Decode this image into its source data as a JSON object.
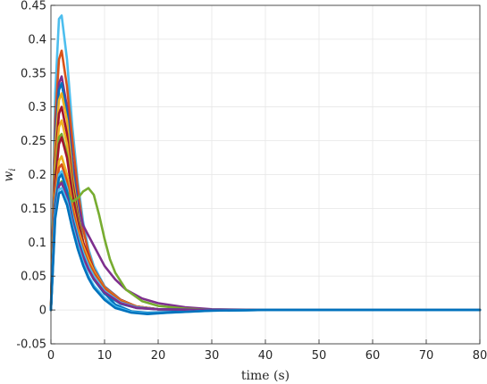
{
  "chart_data": {
    "type": "line",
    "xlabel": "time (s)",
    "ylabel": "w_i",
    "ylabel_main": "w",
    "ylabel_sub": "i",
    "xlim": [
      0,
      80
    ],
    "ylim": [
      -0.05,
      0.45
    ],
    "xticks": [
      0,
      10,
      20,
      30,
      40,
      50,
      60,
      70,
      80
    ],
    "yticks": [
      -0.05,
      0,
      0.05,
      0.1,
      0.15,
      0.2,
      0.25,
      0.3,
      0.35,
      0.4,
      0.45
    ],
    "xtick_labels": [
      "0",
      "10",
      "20",
      "30",
      "40",
      "50",
      "60",
      "70",
      "80"
    ],
    "ytick_labels": [
      "-0.05",
      "0",
      "0.05",
      "0.1",
      "0.15",
      "0.2",
      "0.25",
      "0.3",
      "0.35",
      "0.4",
      "0.45"
    ],
    "grid": true,
    "colors": [
      "#0072BD",
      "#D95319",
      "#EDB120",
      "#7E2F8E",
      "#77AC30",
      "#4DBEEE",
      "#A2142F"
    ],
    "series": [
      {
        "color": "#4DBEEE",
        "values": [
          [
            0,
            0
          ],
          [
            0.8,
            0.32
          ],
          [
            1.5,
            0.43
          ],
          [
            2,
            0.435
          ],
          [
            3,
            0.37
          ],
          [
            4,
            0.27
          ],
          [
            5,
            0.19
          ],
          [
            6,
            0.13
          ],
          [
            7,
            0.09
          ],
          [
            8,
            0.065
          ],
          [
            10,
            0.035
          ],
          [
            13,
            0.015
          ],
          [
            16,
            0.005
          ],
          [
            20,
            0.001
          ],
          [
            30,
            0
          ],
          [
            80,
            0
          ]
        ]
      },
      {
        "color": "#D95319",
        "values": [
          [
            0,
            0
          ],
          [
            0.8,
            0.28
          ],
          [
            1.5,
            0.37
          ],
          [
            2,
            0.383
          ],
          [
            3,
            0.33
          ],
          [
            4,
            0.25
          ],
          [
            5,
            0.18
          ],
          [
            6,
            0.12
          ],
          [
            7,
            0.085
          ],
          [
            8,
            0.06
          ],
          [
            10,
            0.033
          ],
          [
            13,
            0.014
          ],
          [
            16,
            0.005
          ],
          [
            20,
            0.001
          ],
          [
            30,
            0
          ],
          [
            80,
            0
          ]
        ]
      },
      {
        "color": "#7E2F8E",
        "values": [
          [
            0,
            0
          ],
          [
            0.8,
            0.26
          ],
          [
            1.5,
            0.335
          ],
          [
            2,
            0.345
          ],
          [
            3,
            0.3
          ],
          [
            4,
            0.22
          ],
          [
            5,
            0.16
          ],
          [
            6,
            0.125
          ],
          [
            7,
            0.11
          ],
          [
            8,
            0.095
          ],
          [
            10,
            0.065
          ],
          [
            12,
            0.045
          ],
          [
            14,
            0.03
          ],
          [
            17,
            0.017
          ],
          [
            20,
            0.01
          ],
          [
            25,
            0.004
          ],
          [
            30,
            0.001
          ],
          [
            40,
            0
          ],
          [
            80,
            0
          ]
        ]
      },
      {
        "color": "#0072BD",
        "values": [
          [
            0,
            0
          ],
          [
            0.8,
            0.25
          ],
          [
            1.5,
            0.325
          ],
          [
            2,
            0.335
          ],
          [
            3,
            0.29
          ],
          [
            4,
            0.21
          ],
          [
            5,
            0.15
          ],
          [
            6,
            0.1
          ],
          [
            7,
            0.07
          ],
          [
            8,
            0.05
          ],
          [
            10,
            0.025
          ],
          [
            12,
            0.008
          ],
          [
            15,
            -0.002
          ],
          [
            18,
            -0.004
          ],
          [
            22,
            -0.003
          ],
          [
            30,
            -0.001
          ],
          [
            40,
            0
          ],
          [
            80,
            0
          ]
        ]
      },
      {
        "color": "#EDB120",
        "values": [
          [
            0,
            0
          ],
          [
            0.8,
            0.24
          ],
          [
            1.5,
            0.31
          ],
          [
            2,
            0.32
          ],
          [
            3,
            0.28
          ],
          [
            4,
            0.2
          ],
          [
            5,
            0.145
          ],
          [
            6,
            0.1
          ],
          [
            7,
            0.072
          ],
          [
            8,
            0.052
          ],
          [
            10,
            0.028
          ],
          [
            13,
            0.012
          ],
          [
            16,
            0.004
          ],
          [
            20,
            0.001
          ],
          [
            30,
            0
          ],
          [
            80,
            0
          ]
        ]
      },
      {
        "color": "#A2142F",
        "values": [
          [
            0,
            0
          ],
          [
            0.8,
            0.22
          ],
          [
            1.5,
            0.29
          ],
          [
            2,
            0.3
          ],
          [
            3,
            0.26
          ],
          [
            4,
            0.19
          ],
          [
            5,
            0.14
          ],
          [
            6,
            0.1
          ],
          [
            7,
            0.075
          ],
          [
            8,
            0.055
          ],
          [
            10,
            0.03
          ],
          [
            13,
            0.013
          ],
          [
            16,
            0.004
          ],
          [
            20,
            0.001
          ],
          [
            30,
            0
          ],
          [
            80,
            0
          ]
        ]
      },
      {
        "color": "#EDB120",
        "values": [
          [
            0,
            0
          ],
          [
            0.8,
            0.21
          ],
          [
            1.5,
            0.27
          ],
          [
            2,
            0.28
          ],
          [
            3,
            0.245
          ],
          [
            4,
            0.18
          ],
          [
            5,
            0.135
          ],
          [
            6,
            0.098
          ],
          [
            7,
            0.072
          ],
          [
            8,
            0.054
          ],
          [
            10,
            0.03
          ],
          [
            13,
            0.012
          ],
          [
            16,
            0.004
          ],
          [
            20,
            0.001
          ],
          [
            30,
            0
          ],
          [
            80,
            0
          ]
        ]
      },
      {
        "color": "#77AC30",
        "values": [
          [
            0,
            0
          ],
          [
            0.8,
            0.2
          ],
          [
            1.5,
            0.255
          ],
          [
            2,
            0.26
          ],
          [
            3,
            0.23
          ],
          [
            4,
            0.175
          ],
          [
            5,
            0.135
          ],
          [
            6,
            0.1
          ],
          [
            7,
            0.075
          ],
          [
            8,
            0.056
          ],
          [
            10,
            0.031
          ],
          [
            13,
            0.013
          ],
          [
            16,
            0.005
          ],
          [
            20,
            0.001
          ],
          [
            30,
            0
          ],
          [
            80,
            0
          ]
        ]
      },
      {
        "color": "#A2142F",
        "values": [
          [
            0,
            0
          ],
          [
            0.8,
            0.19
          ],
          [
            1.5,
            0.245
          ],
          [
            2,
            0.255
          ],
          [
            3,
            0.225
          ],
          [
            4,
            0.17
          ],
          [
            5,
            0.13
          ],
          [
            6,
            0.1
          ],
          [
            7,
            0.078
          ],
          [
            8,
            0.06
          ],
          [
            10,
            0.034
          ],
          [
            13,
            0.015
          ],
          [
            16,
            0.005
          ],
          [
            20,
            0.001
          ],
          [
            30,
            0
          ],
          [
            80,
            0
          ]
        ]
      },
      {
        "color": "#EDB120",
        "values": [
          [
            0,
            0
          ],
          [
            0.8,
            0.17
          ],
          [
            1.5,
            0.22
          ],
          [
            2,
            0.227
          ],
          [
            3,
            0.2
          ],
          [
            4,
            0.155
          ],
          [
            5,
            0.12
          ],
          [
            6,
            0.095
          ],
          [
            7,
            0.075
          ],
          [
            8,
            0.058
          ],
          [
            10,
            0.033
          ],
          [
            13,
            0.014
          ],
          [
            16,
            0.005
          ],
          [
            20,
            0.001
          ],
          [
            30,
            0
          ],
          [
            80,
            0
          ]
        ]
      },
      {
        "color": "#D95319",
        "values": [
          [
            0,
            0
          ],
          [
            0.8,
            0.165
          ],
          [
            1.5,
            0.21
          ],
          [
            2,
            0.215
          ],
          [
            3,
            0.19
          ],
          [
            4,
            0.15
          ],
          [
            5,
            0.115
          ],
          [
            6,
            0.09
          ],
          [
            7,
            0.07
          ],
          [
            8,
            0.055
          ],
          [
            10,
            0.032
          ],
          [
            13,
            0.013
          ],
          [
            16,
            0.005
          ],
          [
            20,
            0.001
          ],
          [
            30,
            0
          ],
          [
            80,
            0
          ]
        ]
      },
      {
        "color": "#4DBEEE",
        "values": [
          [
            0,
            0
          ],
          [
            0.8,
            0.16
          ],
          [
            1.5,
            0.2
          ],
          [
            2,
            0.205
          ],
          [
            3,
            0.18
          ],
          [
            4,
            0.14
          ],
          [
            5,
            0.11
          ],
          [
            6,
            0.085
          ],
          [
            7,
            0.065
          ],
          [
            8,
            0.05
          ],
          [
            10,
            0.028
          ],
          [
            13,
            0.011
          ],
          [
            16,
            0.004
          ],
          [
            20,
            0.001
          ],
          [
            30,
            0
          ],
          [
            80,
            0
          ]
        ]
      },
      {
        "color": "#77AC30",
        "values": [
          [
            0,
            0
          ],
          [
            0.8,
            0.15
          ],
          [
            1.5,
            0.185
          ],
          [
            2,
            0.19
          ],
          [
            3,
            0.175
          ],
          [
            4,
            0.16
          ],
          [
            5,
            0.165
          ],
          [
            6,
            0.175
          ],
          [
            7,
            0.18
          ],
          [
            8,
            0.17
          ],
          [
            9,
            0.14
          ],
          [
            10,
            0.105
          ],
          [
            11,
            0.075
          ],
          [
            12,
            0.055
          ],
          [
            14,
            0.03
          ],
          [
            17,
            0.013
          ],
          [
            20,
            0.006
          ],
          [
            25,
            0.002
          ],
          [
            30,
            0
          ],
          [
            80,
            0
          ]
        ]
      },
      {
        "color": "#0072BD",
        "values": [
          [
            0,
            0
          ],
          [
            0.8,
            0.155
          ],
          [
            1.5,
            0.195
          ],
          [
            2,
            0.2
          ],
          [
            3,
            0.175
          ],
          [
            4,
            0.135
          ],
          [
            5,
            0.105
          ],
          [
            6,
            0.08
          ],
          [
            7,
            0.06
          ],
          [
            8,
            0.045
          ],
          [
            10,
            0.024
          ],
          [
            13,
            0.009
          ],
          [
            16,
            0.003
          ],
          [
            20,
            0.001
          ],
          [
            30,
            0
          ],
          [
            80,
            0
          ]
        ]
      },
      {
        "color": "#7E2F8E",
        "values": [
          [
            0,
            0
          ],
          [
            0.8,
            0.145
          ],
          [
            1.5,
            0.183
          ],
          [
            2,
            0.188
          ],
          [
            3,
            0.165
          ],
          [
            4,
            0.13
          ],
          [
            5,
            0.1
          ],
          [
            6,
            0.078
          ],
          [
            7,
            0.06
          ],
          [
            8,
            0.046
          ],
          [
            10,
            0.026
          ],
          [
            13,
            0.01
          ],
          [
            16,
            0.003
          ],
          [
            20,
            0.001
          ],
          [
            30,
            0
          ],
          [
            80,
            0
          ]
        ]
      },
      {
        "color": "#4DBEEE",
        "values": [
          [
            0,
            0
          ],
          [
            0.8,
            0.14
          ],
          [
            1.5,
            0.178
          ],
          [
            2,
            0.18
          ],
          [
            3,
            0.16
          ],
          [
            4,
            0.125
          ],
          [
            5,
            0.095
          ],
          [
            6,
            0.07
          ],
          [
            7,
            0.05
          ],
          [
            8,
            0.036
          ],
          [
            10,
            0.018
          ],
          [
            12,
            0.005
          ],
          [
            15,
            -0.003
          ],
          [
            18,
            -0.005
          ],
          [
            22,
            -0.004
          ],
          [
            30,
            -0.001
          ],
          [
            40,
            0
          ],
          [
            80,
            0
          ]
        ]
      },
      {
        "color": "#0072BD",
        "values": [
          [
            0,
            0
          ],
          [
            0.8,
            0.135
          ],
          [
            1.5,
            0.172
          ],
          [
            2,
            0.175
          ],
          [
            3,
            0.155
          ],
          [
            4,
            0.12
          ],
          [
            5,
            0.09
          ],
          [
            6,
            0.066
          ],
          [
            7,
            0.047
          ],
          [
            8,
            0.033
          ],
          [
            10,
            0.015
          ],
          [
            12,
            0.003
          ],
          [
            15,
            -0.004
          ],
          [
            18,
            -0.006
          ],
          [
            22,
            -0.004
          ],
          [
            30,
            -0.001
          ],
          [
            40,
            0
          ],
          [
            80,
            0
          ]
        ]
      }
    ]
  }
}
